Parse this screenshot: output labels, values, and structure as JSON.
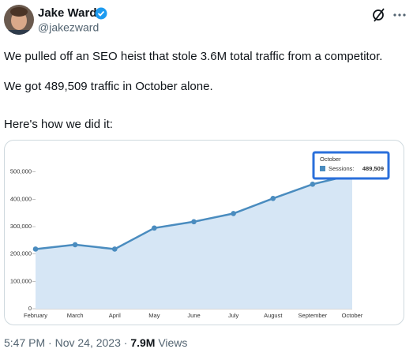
{
  "post": {
    "author": "Jake Ward",
    "handle": "@jakezward",
    "lines": [
      "We pulled off an SEO heist that stole 3.6M total traffic from a competitor.",
      "We got 489,509 traffic in October alone.",
      "Here's how we did it:"
    ],
    "timestamp": "5:47 PM · Nov 24, 2023 ·",
    "views": "7.9M",
    "views_label": "Views"
  },
  "chart_data": {
    "type": "area",
    "categories": [
      "February",
      "March",
      "April",
      "May",
      "June",
      "July",
      "August",
      "September",
      "October"
    ],
    "series": [
      {
        "name": "Sessions:",
        "color": "#4a8cbf",
        "values": [
          218000,
          234000,
          218000,
          295000,
          318000,
          348000,
          403000,
          455000,
          489509
        ],
        "value_labels": [
          null,
          null,
          null,
          null,
          null,
          null,
          null,
          null,
          "489,509"
        ]
      }
    ],
    "ylim": [
      0,
      580000
    ],
    "yticks": [
      0,
      {
        "value": 100000,
        "label": "100,000"
      },
      {
        "value": 200000,
        "label": "200,000"
      },
      {
        "value": 300000,
        "label": "300,000"
      },
      {
        "value": 400000,
        "label": "400,000"
      },
      {
        "value": 500000,
        "label": "500,000"
      }
    ],
    "fill": "#d6e6f5"
  }
}
